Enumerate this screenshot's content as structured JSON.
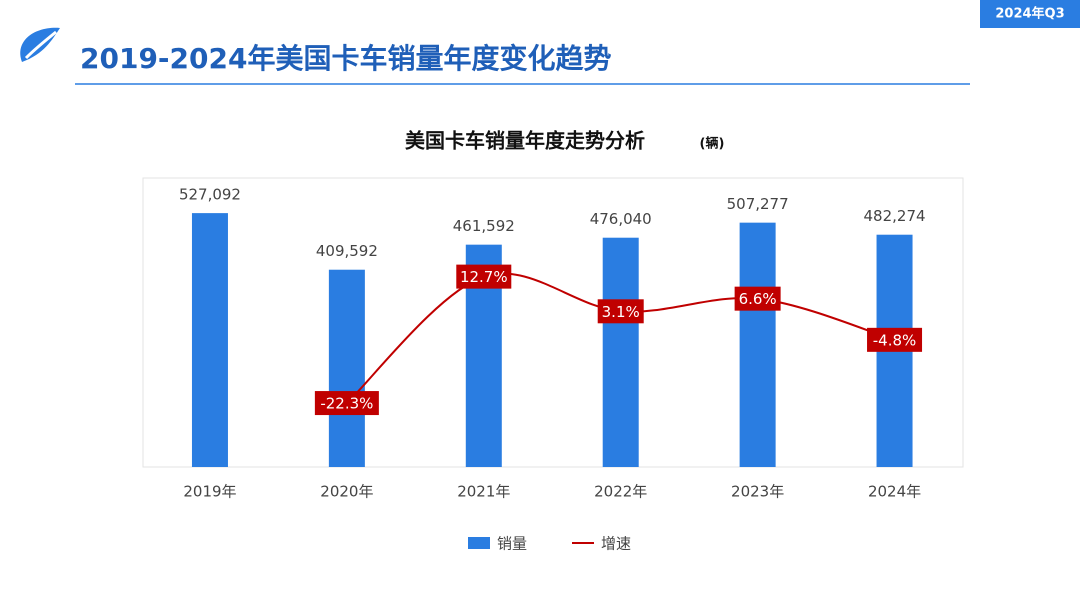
{
  "header": {
    "title": "2019-2024年美国卡车销量年度变化趋势",
    "badge": "2024年Q3"
  },
  "chart_data": {
    "type": "bar",
    "title": "美国卡车销量年度走势分析",
    "subtitle": "(辆)",
    "categories": [
      "2019年",
      "2020年",
      "2021年",
      "2022年",
      "2023年",
      "2024年"
    ],
    "ylim": [
      0,
      600000
    ],
    "y2lim": [
      -40,
      40
    ],
    "series": [
      {
        "name": "销量",
        "type": "bar",
        "color": "#2a7de1",
        "values": [
          527092,
          409592,
          461592,
          476040,
          507277,
          482274
        ],
        "value_labels": [
          "527,092",
          "409,592",
          "461,592",
          "476,040",
          "507,277",
          "482,274"
        ]
      },
      {
        "name": "增速",
        "type": "line",
        "axis": "y2",
        "color": "#c00000",
        "values": [
          null,
          -22.3,
          12.7,
          3.1,
          6.6,
          -4.8
        ],
        "value_labels": [
          null,
          "-22.3%",
          "12.7%",
          "3.1%",
          "6.6%",
          "-4.8%"
        ]
      }
    ]
  }
}
